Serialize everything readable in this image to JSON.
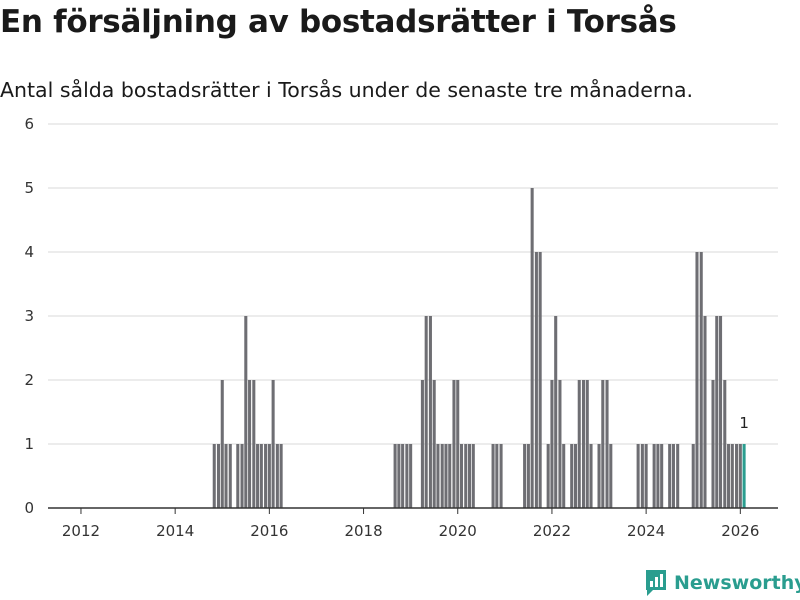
{
  "title": "En försäljning av bostadsrätter i Torsås",
  "subtitle": "Antal sålda bostadsrätter i Torsås under de senaste tre månaderna.",
  "brand": "Newsworthy",
  "colors": {
    "bar": "#6e6e73",
    "highlight": "#2a9d8f",
    "grid": "#d9d9d9",
    "axis": "#333333"
  },
  "chart_data": {
    "type": "bar",
    "title": "En försäljning av bostadsrätter i Torsås",
    "xlabel": "",
    "ylabel": "",
    "ylim": [
      0,
      6
    ],
    "xlim": [
      2011.3,
      2026.8
    ],
    "yticks": [
      0,
      1,
      2,
      3,
      4,
      5,
      6
    ],
    "xticks": [
      2012,
      2014,
      2016,
      2018,
      2020,
      2022,
      2024,
      2026
    ],
    "series": [
      {
        "name": "Antal sålda bostadsrätter",
        "points": [
          {
            "x": 2014.83,
            "y": 1
          },
          {
            "x": 2014.92,
            "y": 1
          },
          {
            "x": 2015.0,
            "y": 2
          },
          {
            "x": 2015.08,
            "y": 1
          },
          {
            "x": 2015.17,
            "y": 1
          },
          {
            "x": 2015.33,
            "y": 1
          },
          {
            "x": 2015.42,
            "y": 1
          },
          {
            "x": 2015.5,
            "y": 3
          },
          {
            "x": 2015.58,
            "y": 2
          },
          {
            "x": 2015.67,
            "y": 2
          },
          {
            "x": 2015.75,
            "y": 1
          },
          {
            "x": 2015.83,
            "y": 1
          },
          {
            "x": 2015.92,
            "y": 1
          },
          {
            "x": 2016.0,
            "y": 1
          },
          {
            "x": 2016.08,
            "y": 2
          },
          {
            "x": 2016.17,
            "y": 1
          },
          {
            "x": 2016.25,
            "y": 1
          },
          {
            "x": 2018.67,
            "y": 1
          },
          {
            "x": 2018.75,
            "y": 1
          },
          {
            "x": 2018.83,
            "y": 1
          },
          {
            "x": 2018.92,
            "y": 1
          },
          {
            "x": 2019.0,
            "y": 1
          },
          {
            "x": 2019.25,
            "y": 2
          },
          {
            "x": 2019.33,
            "y": 3
          },
          {
            "x": 2019.42,
            "y": 3
          },
          {
            "x": 2019.5,
            "y": 2
          },
          {
            "x": 2019.58,
            "y": 1
          },
          {
            "x": 2019.67,
            "y": 1
          },
          {
            "x": 2019.75,
            "y": 1
          },
          {
            "x": 2019.83,
            "y": 1
          },
          {
            "x": 2019.92,
            "y": 2
          },
          {
            "x": 2020.0,
            "y": 2
          },
          {
            "x": 2020.08,
            "y": 1
          },
          {
            "x": 2020.17,
            "y": 1
          },
          {
            "x": 2020.25,
            "y": 1
          },
          {
            "x": 2020.33,
            "y": 1
          },
          {
            "x": 2020.75,
            "y": 1
          },
          {
            "x": 2020.83,
            "y": 1
          },
          {
            "x": 2020.92,
            "y": 1
          },
          {
            "x": 2021.42,
            "y": 1
          },
          {
            "x": 2021.5,
            "y": 1
          },
          {
            "x": 2021.58,
            "y": 5
          },
          {
            "x": 2021.67,
            "y": 4
          },
          {
            "x": 2021.75,
            "y": 4
          },
          {
            "x": 2021.92,
            "y": 1
          },
          {
            "x": 2022.0,
            "y": 2
          },
          {
            "x": 2022.08,
            "y": 3
          },
          {
            "x": 2022.17,
            "y": 2
          },
          {
            "x": 2022.25,
            "y": 1
          },
          {
            "x": 2022.42,
            "y": 1
          },
          {
            "x": 2022.5,
            "y": 1
          },
          {
            "x": 2022.58,
            "y": 2
          },
          {
            "x": 2022.67,
            "y": 2
          },
          {
            "x": 2022.75,
            "y": 2
          },
          {
            "x": 2022.83,
            "y": 1
          },
          {
            "x": 2023.0,
            "y": 1
          },
          {
            "x": 2023.08,
            "y": 2
          },
          {
            "x": 2023.17,
            "y": 2
          },
          {
            "x": 2023.25,
            "y": 1
          },
          {
            "x": 2023.83,
            "y": 1
          },
          {
            "x": 2023.92,
            "y": 1
          },
          {
            "x": 2024.0,
            "y": 1
          },
          {
            "x": 2024.17,
            "y": 1
          },
          {
            "x": 2024.25,
            "y": 1
          },
          {
            "x": 2024.33,
            "y": 1
          },
          {
            "x": 2024.5,
            "y": 1
          },
          {
            "x": 2024.58,
            "y": 1
          },
          {
            "x": 2024.67,
            "y": 1
          },
          {
            "x": 2025.0,
            "y": 1
          },
          {
            "x": 2025.08,
            "y": 4
          },
          {
            "x": 2025.17,
            "y": 4
          },
          {
            "x": 2025.25,
            "y": 3
          },
          {
            "x": 2025.42,
            "y": 2
          },
          {
            "x": 2025.5,
            "y": 3
          },
          {
            "x": 2025.58,
            "y": 3
          },
          {
            "x": 2025.67,
            "y": 2
          },
          {
            "x": 2025.75,
            "y": 1
          },
          {
            "x": 2025.83,
            "y": 1
          },
          {
            "x": 2025.92,
            "y": 1
          },
          {
            "x": 2026.0,
            "y": 1
          },
          {
            "x": 2026.08,
            "y": 1,
            "highlight": true
          }
        ]
      }
    ],
    "annotations": [
      {
        "x": 2026.08,
        "y": 1,
        "text": "1"
      }
    ]
  }
}
